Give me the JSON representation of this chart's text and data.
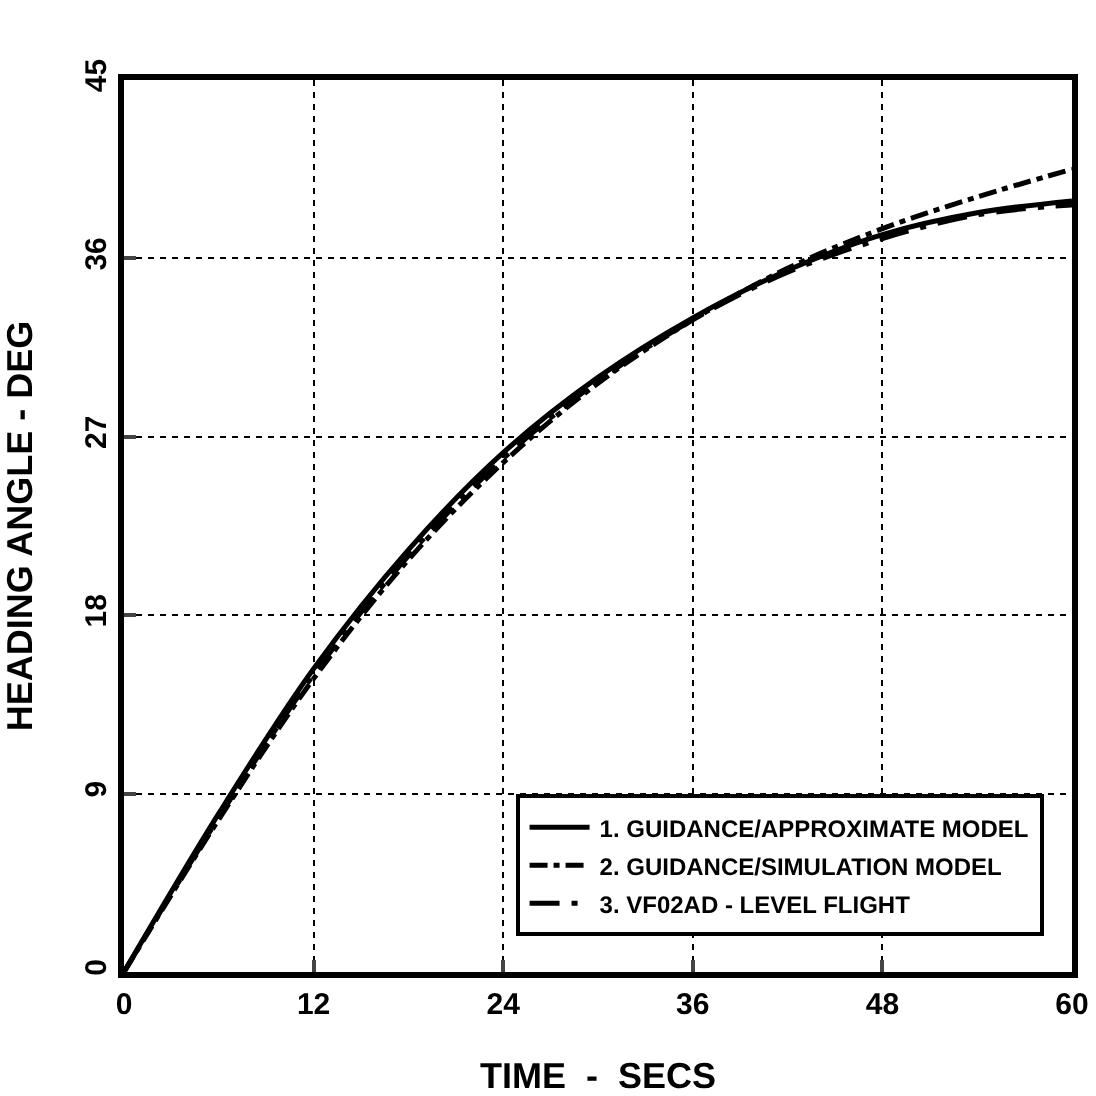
{
  "chart_data": {
    "type": "line",
    "xlabel": "TIME  -  SECS",
    "ylabel": "HEADING ANGLE - DEG",
    "x": [
      0,
      6,
      12,
      18,
      24,
      30,
      36,
      42,
      48,
      54,
      60
    ],
    "xlim": [
      0,
      60
    ],
    "xticks": [
      0,
      12,
      24,
      36,
      48,
      60
    ],
    "ylim": [
      0,
      45
    ],
    "yticks": [
      0,
      9,
      18,
      27,
      36,
      45
    ],
    "grid": true,
    "legend": "bottom right",
    "marker": "none",
    "series": [
      {
        "name": "1. GUIDANCE/APPROXIMATE MODEL",
        "color": "#000000",
        "line_style": "solid",
        "values": [
          0,
          8.0,
          15.3,
          21.3,
          26.2,
          30.0,
          33.0,
          35.4,
          37.2,
          38.3,
          38.9
        ]
      },
      {
        "name": "2. GUIDANCE/SIMULATION MODEL",
        "color": "#000000",
        "line_style": "dashdot",
        "values": [
          0,
          7.7,
          14.8,
          20.8,
          25.7,
          29.7,
          32.9,
          35.5,
          37.5,
          39.1,
          40.5
        ]
      },
      {
        "name": "3. VF02AD - LEVEL FLIGHT",
        "color": "#000000",
        "line_style": "longdashdot",
        "values": [
          0,
          7.8,
          15.0,
          21.0,
          25.9,
          29.8,
          32.9,
          35.3,
          37.0,
          38.2,
          38.7
        ]
      }
    ]
  }
}
